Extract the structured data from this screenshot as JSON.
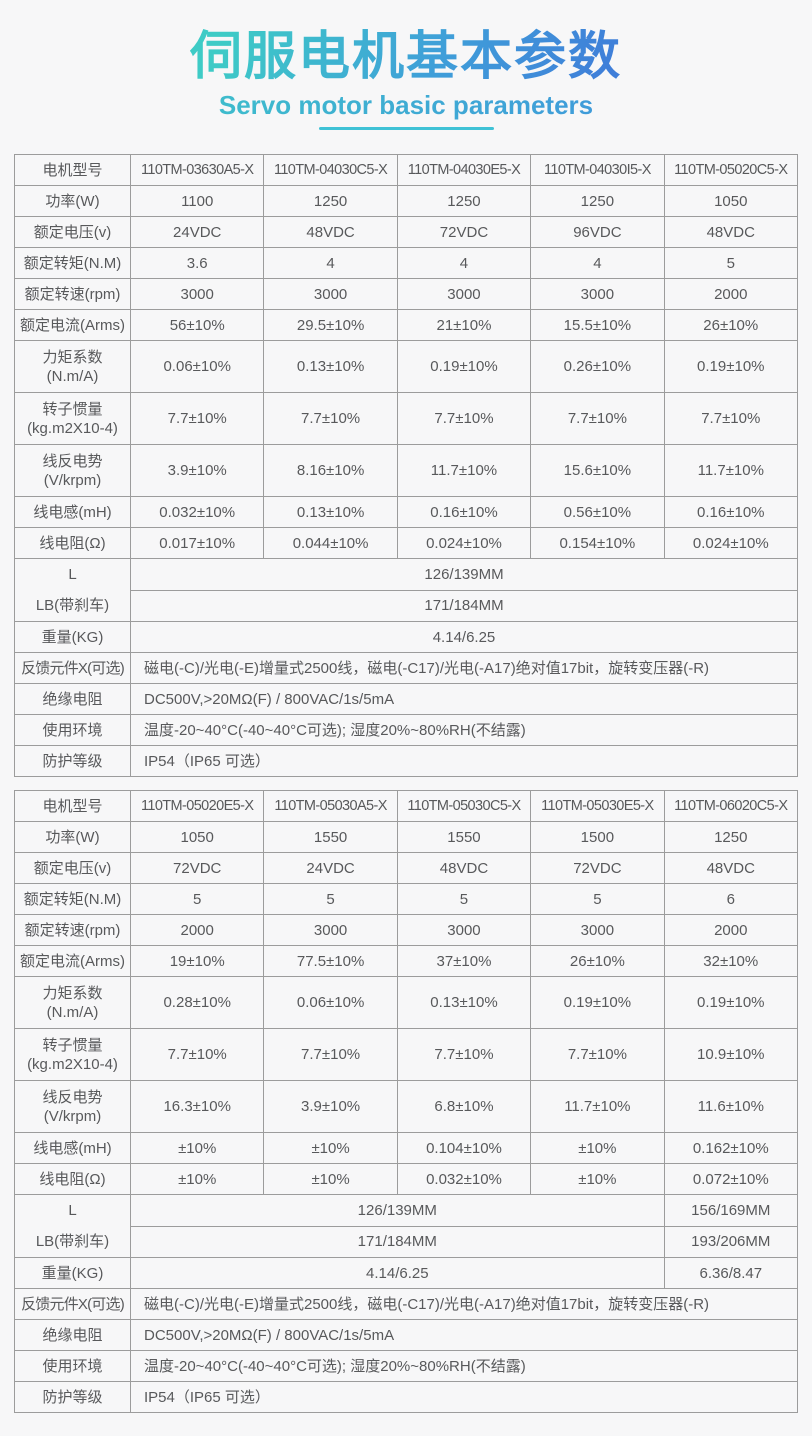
{
  "page": {
    "title": "伺服电机基本参数",
    "subtitle": "Servo motor basic parameters",
    "colors": {
      "background": "#f7f7f8",
      "accent_gradient": [
        "#3ecbc6",
        "#3f9ed9",
        "#3f7ed9"
      ],
      "underline": "#3fc2d6",
      "table_border": "#9c9c9c",
      "text": "#58595b"
    }
  },
  "tables": [
    {
      "name": "spec-table-1",
      "rows": [
        {
          "label": "电机型号",
          "cls": "model",
          "cells": [
            {
              "t": "110TM-03630A5-X"
            },
            {
              "t": "110TM-04030C5-X"
            },
            {
              "t": "110TM-04030E5-X"
            },
            {
              "t": "110TM-04030I5-X"
            },
            {
              "t": "110TM-05020C5-X"
            }
          ]
        },
        {
          "label": "功率(W)",
          "cells": [
            {
              "t": "1100"
            },
            {
              "t": "1250"
            },
            {
              "t": "1250"
            },
            {
              "t": "1250"
            },
            {
              "t": "1050"
            }
          ]
        },
        {
          "label": "额定电压(v)",
          "cells": [
            {
              "t": "24VDC"
            },
            {
              "t": "48VDC"
            },
            {
              "t": "72VDC"
            },
            {
              "t": "96VDC"
            },
            {
              "t": "48VDC"
            }
          ]
        },
        {
          "label": "额定转矩(N.M)",
          "cells": [
            {
              "t": "3.6"
            },
            {
              "t": "4"
            },
            {
              "t": "4"
            },
            {
              "t": "4"
            },
            {
              "t": "5"
            }
          ]
        },
        {
          "label": "额定转速(rpm)",
          "cells": [
            {
              "t": "3000"
            },
            {
              "t": "3000"
            },
            {
              "t": "3000"
            },
            {
              "t": "3000"
            },
            {
              "t": "2000"
            }
          ]
        },
        {
          "label": "额定电流(Arms)",
          "cells": [
            {
              "t": "56±10%"
            },
            {
              "t": "29.5±10%"
            },
            {
              "t": "21±10%"
            },
            {
              "t": "15.5±10%"
            },
            {
              "t": "26±10%"
            }
          ]
        },
        {
          "label": [
            "力矩系数",
            "(N.m/A)"
          ],
          "tall": true,
          "cells": [
            {
              "t": "0.06±10%"
            },
            {
              "t": "0.13±10%"
            },
            {
              "t": "0.19±10%"
            },
            {
              "t": "0.26±10%"
            },
            {
              "t": "0.19±10%"
            }
          ]
        },
        {
          "label": [
            "转子惯量",
            "(kg.m2X10-4)"
          ],
          "tall": true,
          "cells": [
            {
              "t": "7.7±10%"
            },
            {
              "t": "7.7±10%"
            },
            {
              "t": "7.7±10%"
            },
            {
              "t": "7.7±10%"
            },
            {
              "t": "7.7±10%"
            }
          ]
        },
        {
          "label": [
            "线反电势",
            "(V/krpm)"
          ],
          "tall": true,
          "cells": [
            {
              "t": "3.9±10%"
            },
            {
              "t": "8.16±10%"
            },
            {
              "t": "11.7±10%"
            },
            {
              "t": "15.6±10%"
            },
            {
              "t": "11.7±10%"
            }
          ]
        },
        {
          "label": "线电感(mH)",
          "cells": [
            {
              "t": "0.032±10%"
            },
            {
              "t": "0.13±10%"
            },
            {
              "t": "0.16±10%"
            },
            {
              "t": "0.56±10%"
            },
            {
              "t": "0.16±10%"
            }
          ]
        },
        {
          "label": "线电阻(Ω)",
          "cells": [
            {
              "t": "0.017±10%"
            },
            {
              "t": "0.044±10%"
            },
            {
              "t": "0.024±10%"
            },
            {
              "t": "0.154±10%"
            },
            {
              "t": "0.024±10%"
            }
          ]
        },
        {
          "pair": [
            "L",
            "LB(带刹车)"
          ],
          "pair_rows": [
            [
              {
                "t": "126/139MM",
                "s": 5
              }
            ],
            [
              {
                "t": "171/184MM",
                "s": 5
              }
            ]
          ]
        },
        {
          "label": "重量(KG)",
          "cells": [
            {
              "t": "4.14/6.25",
              "s": 5
            }
          ]
        },
        {
          "label": "反馈元件X(可选)",
          "lblcls": "narrow",
          "align": "left",
          "cells": [
            {
              "t": "磁电(-C)/光电(-E)增量式2500线，磁电(-C17)/光电(-A17)绝对值17bit，旋转变压器(-R)",
              "s": 5
            }
          ]
        },
        {
          "label": "绝缘电阻",
          "align": "left",
          "cells": [
            {
              "t": "DC500V,>20MΩ(F) / 800VAC/1s/5mA",
              "s": 5
            }
          ]
        },
        {
          "label": "使用环境",
          "align": "left",
          "cells": [
            {
              "t": "温度-20~40°C(-40~40°C可选); 湿度20%~80%RH(不结露)",
              "s": 5
            }
          ]
        },
        {
          "label": "防护等级",
          "align": "left",
          "cells": [
            {
              "t": "IP54（IP65 可选）",
              "s": 5
            }
          ]
        }
      ]
    },
    {
      "name": "spec-table-2",
      "rows": [
        {
          "label": "电机型号",
          "cls": "model",
          "cells": [
            {
              "t": "110TM-05020E5-X"
            },
            {
              "t": "110TM-05030A5-X"
            },
            {
              "t": "110TM-05030C5-X"
            },
            {
              "t": "110TM-05030E5-X"
            },
            {
              "t": "110TM-06020C5-X"
            }
          ]
        },
        {
          "label": "功率(W)",
          "cells": [
            {
              "t": "1050"
            },
            {
              "t": "1550"
            },
            {
              "t": "1550"
            },
            {
              "t": "1500"
            },
            {
              "t": "1250"
            }
          ]
        },
        {
          "label": "额定电压(v)",
          "cells": [
            {
              "t": "72VDC"
            },
            {
              "t": "24VDC"
            },
            {
              "t": "48VDC"
            },
            {
              "t": "72VDC"
            },
            {
              "t": "48VDC"
            }
          ]
        },
        {
          "label": "额定转矩(N.M)",
          "cells": [
            {
              "t": "5"
            },
            {
              "t": "5"
            },
            {
              "t": "5"
            },
            {
              "t": "5"
            },
            {
              "t": "6"
            }
          ]
        },
        {
          "label": "额定转速(rpm)",
          "cells": [
            {
              "t": "2000"
            },
            {
              "t": "3000"
            },
            {
              "t": "3000"
            },
            {
              "t": "3000"
            },
            {
              "t": "2000"
            }
          ]
        },
        {
          "label": "额定电流(Arms)",
          "cells": [
            {
              "t": "19±10%"
            },
            {
              "t": "77.5±10%"
            },
            {
              "t": "37±10%"
            },
            {
              "t": "26±10%"
            },
            {
              "t": "32±10%"
            }
          ]
        },
        {
          "label": [
            "力矩系数",
            "(N.m/A)"
          ],
          "tall": true,
          "cells": [
            {
              "t": "0.28±10%"
            },
            {
              "t": "0.06±10%"
            },
            {
              "t": "0.13±10%"
            },
            {
              "t": "0.19±10%"
            },
            {
              "t": "0.19±10%"
            }
          ]
        },
        {
          "label": [
            "转子惯量",
            "(kg.m2X10-4)"
          ],
          "tall": true,
          "cells": [
            {
              "t": "7.7±10%"
            },
            {
              "t": "7.7±10%"
            },
            {
              "t": "7.7±10%"
            },
            {
              "t": "7.7±10%"
            },
            {
              "t": "10.9±10%"
            }
          ]
        },
        {
          "label": [
            "线反电势",
            "(V/krpm)"
          ],
          "tall": true,
          "cells": [
            {
              "t": "16.3±10%"
            },
            {
              "t": "3.9±10%"
            },
            {
              "t": "6.8±10%"
            },
            {
              "t": "11.7±10%"
            },
            {
              "t": "11.6±10%"
            }
          ]
        },
        {
          "label": "线电感(mH)",
          "cells": [
            {
              "t": "±10%"
            },
            {
              "t": "±10%"
            },
            {
              "t": "0.104±10%"
            },
            {
              "t": "±10%"
            },
            {
              "t": "0.162±10%"
            }
          ]
        },
        {
          "label": "线电阻(Ω)",
          "cells": [
            {
              "t": "±10%"
            },
            {
              "t": "±10%"
            },
            {
              "t": "0.032±10%"
            },
            {
              "t": "±10%"
            },
            {
              "t": "0.072±10%"
            }
          ]
        },
        {
          "pair": [
            "L",
            "LB(带刹车)"
          ],
          "pair_rows": [
            [
              {
                "t": "126/139MM",
                "s": 4
              },
              {
                "t": "156/169MM",
                "s": 1
              }
            ],
            [
              {
                "t": "171/184MM",
                "s": 4
              },
              {
                "t": "193/206MM",
                "s": 1
              }
            ]
          ]
        },
        {
          "label": "重量(KG)",
          "cells": [
            {
              "t": "4.14/6.25",
              "s": 4
            },
            {
              "t": "6.36/8.47",
              "s": 1
            }
          ]
        },
        {
          "label": "反馈元件X(可选)",
          "lblcls": "narrow",
          "align": "left",
          "cells": [
            {
              "t": "磁电(-C)/光电(-E)增量式2500线，磁电(-C17)/光电(-A17)绝对值17bit，旋转变压器(-R)",
              "s": 5
            }
          ]
        },
        {
          "label": "绝缘电阻",
          "align": "left",
          "cells": [
            {
              "t": "DC500V,>20MΩ(F) / 800VAC/1s/5mA",
              "s": 5
            }
          ]
        },
        {
          "label": "使用环境",
          "align": "left",
          "cells": [
            {
              "t": "温度-20~40°C(-40~40°C可选); 湿度20%~80%RH(不结露)",
              "s": 5
            }
          ]
        },
        {
          "label": "防护等级",
          "align": "left",
          "cells": [
            {
              "t": "IP54（IP65 可选）",
              "s": 5
            }
          ]
        }
      ]
    }
  ]
}
